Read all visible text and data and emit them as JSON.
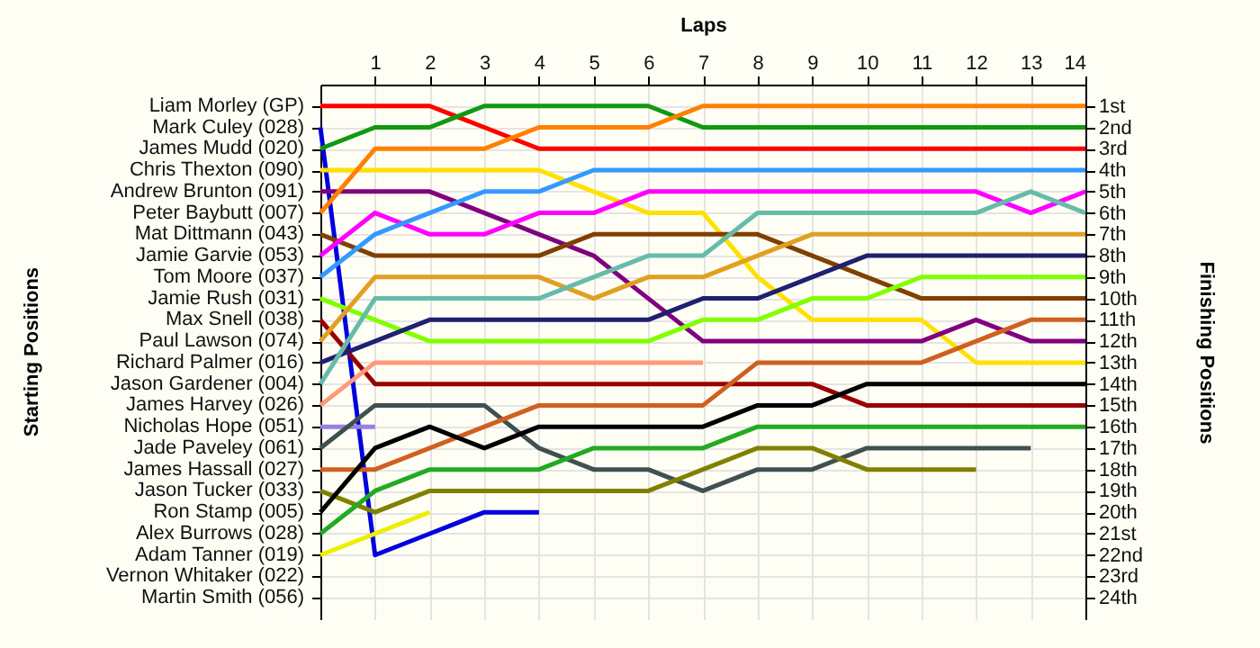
{
  "chart_data": {
    "type": "line",
    "xlabel": "Laps",
    "ylabel": "Finishing Positions",
    "xlim": [
      0,
      14
    ],
    "xticks": [
      1,
      2,
      3,
      4,
      5,
      6,
      7,
      8,
      9,
      10,
      11,
      12,
      13,
      14
    ],
    "ylim": [
      25,
      0
    ],
    "yticks": [
      {
        "value": 1,
        "label": "1st"
      },
      {
        "value": 2,
        "label": "2nd"
      },
      {
        "value": 3,
        "label": "3rd"
      },
      {
        "value": 4,
        "label": "4th"
      },
      {
        "value": 5,
        "label": "5th"
      },
      {
        "value": 6,
        "label": "6th"
      },
      {
        "value": 7,
        "label": "7th"
      },
      {
        "value": 8,
        "label": "8th"
      },
      {
        "value": 9,
        "label": "9th"
      },
      {
        "value": 10,
        "label": "10th"
      },
      {
        "value": 11,
        "label": "11th"
      },
      {
        "value": 12,
        "label": "12th"
      },
      {
        "value": 13,
        "label": "13th"
      },
      {
        "value": 14,
        "label": "14th"
      },
      {
        "value": 15,
        "label": "15th"
      },
      {
        "value": 16,
        "label": "16th"
      },
      {
        "value": 17,
        "label": "17th"
      },
      {
        "value": 18,
        "label": "18th"
      },
      {
        "value": 19,
        "label": "19th"
      },
      {
        "value": 20,
        "label": "20th"
      },
      {
        "value": 21,
        "label": "21st"
      },
      {
        "value": 22,
        "label": "22nd"
      },
      {
        "value": 23,
        "label": "23rd"
      },
      {
        "value": 24,
        "label": "24th"
      }
    ],
    "annotations": [
      "Starting Positions",
      "Liam Morley (GP)",
      "Mark Culey (028)",
      "James Mudd (020)",
      "Chris Thexton (090)",
      "Andrew Brunton (091)",
      "Peter Baybutt (007)",
      "Mat Dittmann (043)",
      "Jamie Garvie (053)",
      "Tom Moore (037)",
      "Jamie Rush (031)",
      "Max Snell (038)",
      "Paul Lawson (074)",
      "Richard Palmer (016)",
      "Jason Gardener (004)",
      "James Harvey (026)",
      "Nicholas Hope (051)",
      "Jade Paveley (061)",
      "James Hassall (027)",
      "Jason Tucker (033)",
      "Ron Stamp (005)",
      "Alex Burrows (028)",
      "Adam Tanner (019)",
      "Vernon Whitaker (022)",
      "Martin Smith (056)"
    ],
    "x": [
      0,
      1,
      2,
      3,
      4,
      5,
      6,
      7,
      8,
      9,
      10,
      11,
      12,
      13,
      14
    ],
    "grid": true,
    "marker": "none",
    "line_style": "solid",
    "series": [
      {
        "color": "#ff0000",
        "values": [
          1,
          1,
          1,
          2,
          3,
          3,
          3,
          3,
          3,
          3,
          3,
          3,
          3,
          3,
          3
        ]
      },
      {
        "color": "#0000dd",
        "values": [
          2,
          22,
          21,
          20,
          20,
          null,
          null,
          null,
          null,
          null,
          null,
          null,
          null,
          null,
          null
        ]
      },
      {
        "color": "#119911",
        "values": [
          3,
          2,
          2,
          1,
          1,
          1,
          1,
          2,
          2,
          2,
          2,
          2,
          2,
          2,
          2
        ]
      },
      {
        "color": "#ffe000",
        "values": [
          4,
          4,
          4,
          4,
          4,
          5,
          6,
          6,
          9,
          11,
          11,
          11,
          13,
          13,
          13
        ]
      },
      {
        "color": "#800080",
        "values": [
          5,
          5,
          5,
          6,
          7,
          8,
          10,
          12,
          12,
          12,
          12,
          12,
          11,
          12,
          12
        ]
      },
      {
        "color": "#ff8000",
        "values": [
          6,
          3,
          3,
          3,
          2,
          2,
          2,
          1,
          1,
          1,
          1,
          1,
          1,
          1,
          1
        ]
      },
      {
        "color": "#804000",
        "values": [
          7,
          8,
          8,
          8,
          8,
          7,
          7,
          7,
          7,
          8,
          9,
          10,
          10,
          10,
          10
        ]
      },
      {
        "color": "#ff00ff",
        "values": [
          8,
          6,
          7,
          7,
          6,
          6,
          5,
          5,
          5,
          5,
          5,
          5,
          5,
          6,
          5
        ]
      },
      {
        "color": "#3399ff",
        "values": [
          9,
          7,
          6,
          5,
          5,
          4,
          4,
          4,
          4,
          4,
          4,
          4,
          4,
          4,
          4
        ]
      },
      {
        "color": "#80ff00",
        "values": [
          10,
          11,
          12,
          12,
          12,
          12,
          12,
          11,
          11,
          10,
          10,
          9,
          9,
          9,
          9
        ]
      },
      {
        "color": "#990000",
        "values": [
          11,
          14,
          14,
          14,
          14,
          14,
          14,
          14,
          14,
          14,
          15,
          15,
          15,
          15,
          15
        ]
      },
      {
        "color": "#e0a020",
        "values": [
          12,
          9,
          9,
          9,
          9,
          10,
          9,
          9,
          8,
          7,
          7,
          7,
          7,
          7,
          7
        ]
      },
      {
        "color": "#202070",
        "values": [
          13,
          12,
          11,
          11,
          11,
          11,
          11,
          10,
          10,
          9,
          8,
          8,
          8,
          8,
          8
        ]
      },
      {
        "color": "#66bbaa",
        "values": [
          14,
          10,
          10,
          10,
          10,
          9,
          8,
          8,
          6,
          6,
          6,
          6,
          6,
          5,
          6
        ]
      },
      {
        "color": "#ff9977",
        "values": [
          15,
          13,
          13,
          13,
          13,
          13,
          13,
          13,
          null,
          null,
          null,
          null,
          null,
          null,
          null
        ]
      },
      {
        "color": "#9980e0",
        "values": [
          16,
          16,
          null,
          null,
          null,
          null,
          null,
          null,
          null,
          null,
          null,
          null,
          null,
          null,
          null
        ]
      },
      {
        "color": "#405050",
        "values": [
          17,
          15,
          15,
          15,
          17,
          18,
          18,
          19,
          18,
          18,
          17,
          17,
          17,
          17,
          null
        ]
      },
      {
        "color": "#d06020",
        "values": [
          18,
          18,
          17,
          16,
          15,
          15,
          15,
          15,
          13,
          13,
          13,
          13,
          12,
          11,
          11
        ]
      },
      {
        "color": "#808000",
        "values": [
          19,
          20,
          19,
          19,
          19,
          19,
          19,
          18,
          17,
          17,
          18,
          18,
          18,
          null,
          null
        ]
      },
      {
        "color": "#000000",
        "values": [
          20,
          17,
          16,
          17,
          16,
          16,
          16,
          16,
          15,
          15,
          14,
          14,
          14,
          14,
          14
        ]
      },
      {
        "color": "#22aa22",
        "values": [
          21,
          19,
          18,
          18,
          18,
          17,
          17,
          17,
          16,
          16,
          16,
          16,
          16,
          16,
          16
        ]
      },
      {
        "color": "#eeee00",
        "values": [
          22,
          21,
          20,
          null,
          null,
          null,
          null,
          null,
          null,
          null,
          null,
          null,
          null,
          null,
          null
        ]
      }
    ]
  }
}
